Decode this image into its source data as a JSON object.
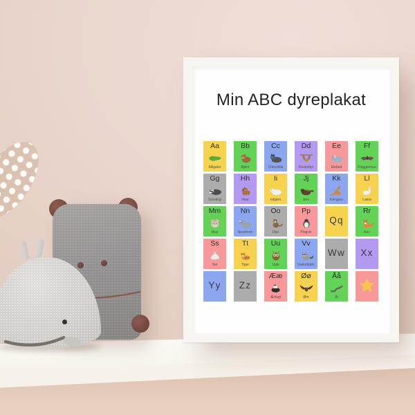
{
  "scene": {
    "wall_color": "#e9d5cc",
    "under_shelf_wall_color": "#d9bba6",
    "shelf_color": "#fbf8f3",
    "frame_color": "#f7f5f1",
    "polka_dot_ear_color": "#dbc1b0",
    "pillow_plush_color": "#939191",
    "pillow_accent_color": "#74473e",
    "whale_plush_color": "#d2d1cd"
  },
  "poster": {
    "title": "Min ABC dyreplakat",
    "paper_color": "#fefefe",
    "star_color": "#f5c64e",
    "palette": {
      "yellow": "#f7d24f",
      "green": "#62d356",
      "blue": "#8ca6f0",
      "purple": "#b29af0",
      "pink": "#f7989b",
      "gray": "#acacac"
    },
    "tiles": [
      {
        "letters": "Aa",
        "label": "Alligator",
        "color": "yellow",
        "icon": "alligator-icon"
      },
      {
        "letters": "Bb",
        "label": "Bjørn",
        "color": "green",
        "icon": "bear-icon"
      },
      {
        "letters": "Cc",
        "label": "Chinchilla",
        "color": "blue",
        "icon": "chinchilla-icon"
      },
      {
        "letters": "Dd",
        "label": "Dovendyr",
        "color": "purple",
        "icon": "sloth-icon"
      },
      {
        "letters": "Ee",
        "label": "Elefant",
        "color": "pink",
        "icon": "elephant-icon"
      },
      {
        "letters": "Ff",
        "label": "Flaggermus",
        "color": "green",
        "icon": "bat-icon"
      },
      {
        "letters": "Gg",
        "label": "Grevling",
        "color": "gray",
        "icon": "badger-icon"
      },
      {
        "letters": "Hh",
        "label": "Hest",
        "color": "purple",
        "icon": "horse-icon"
      },
      {
        "letters": "Ii",
        "label": "Isbjørn",
        "color": "yellow",
        "icon": "polar-bear-icon"
      },
      {
        "letters": "Jj",
        "label": "Jerv",
        "color": "green",
        "icon": "wolverine-icon"
      },
      {
        "letters": "Kk",
        "label": "Kenguru",
        "color": "blue",
        "icon": "kangaroo-icon"
      },
      {
        "letters": "Ll",
        "label": "Lama",
        "color": "yellow",
        "icon": "llama-icon"
      },
      {
        "letters": "Mm",
        "label": "Mus",
        "color": "green",
        "icon": "mouse-icon"
      },
      {
        "letters": "Nn",
        "label": "Nesehorn",
        "color": "blue",
        "icon": "rhino-icon"
      },
      {
        "letters": "Oo",
        "label": "Oter",
        "color": "gray",
        "icon": "otter-icon"
      },
      {
        "letters": "Pp",
        "label": "Pingvin",
        "color": "pink",
        "icon": "penguin-icon"
      },
      {
        "letters": "Qq",
        "label": "",
        "color": "yellow",
        "icon": ""
      },
      {
        "letters": "Rr",
        "label": "Rev",
        "color": "green",
        "icon": "fox-icon"
      },
      {
        "letters": "Ss",
        "label": "Sel",
        "color": "pink",
        "icon": "seal-icon"
      },
      {
        "letters": "Tt",
        "label": "Tiger",
        "color": "yellow",
        "icon": "tiger-icon"
      },
      {
        "letters": "Uu",
        "label": "Ugle",
        "color": "green",
        "icon": "owl-icon"
      },
      {
        "letters": "Vv",
        "label": "Vaskebjørn",
        "color": "blue",
        "icon": "raccoon-icon"
      },
      {
        "letters": "Ww",
        "label": "",
        "color": "gray",
        "icon": ""
      },
      {
        "letters": "Xx",
        "label": "",
        "color": "purple",
        "icon": ""
      },
      {
        "letters": "Yy",
        "label": "",
        "color": "blue",
        "icon": ""
      },
      {
        "letters": "Zz",
        "label": "",
        "color": "gray",
        "icon": ""
      },
      {
        "letters": "Ææ",
        "label": "Ærfugl",
        "color": "pink",
        "icon": "eider-icon"
      },
      {
        "letters": "Øø",
        "label": "Ørn",
        "color": "yellow",
        "icon": "eagle-icon"
      },
      {
        "letters": "Åå",
        "label": "Ål",
        "color": "green",
        "icon": "eel-icon"
      },
      {
        "letters": "",
        "label": "",
        "color": "pink",
        "icon": "star-icon"
      }
    ]
  }
}
